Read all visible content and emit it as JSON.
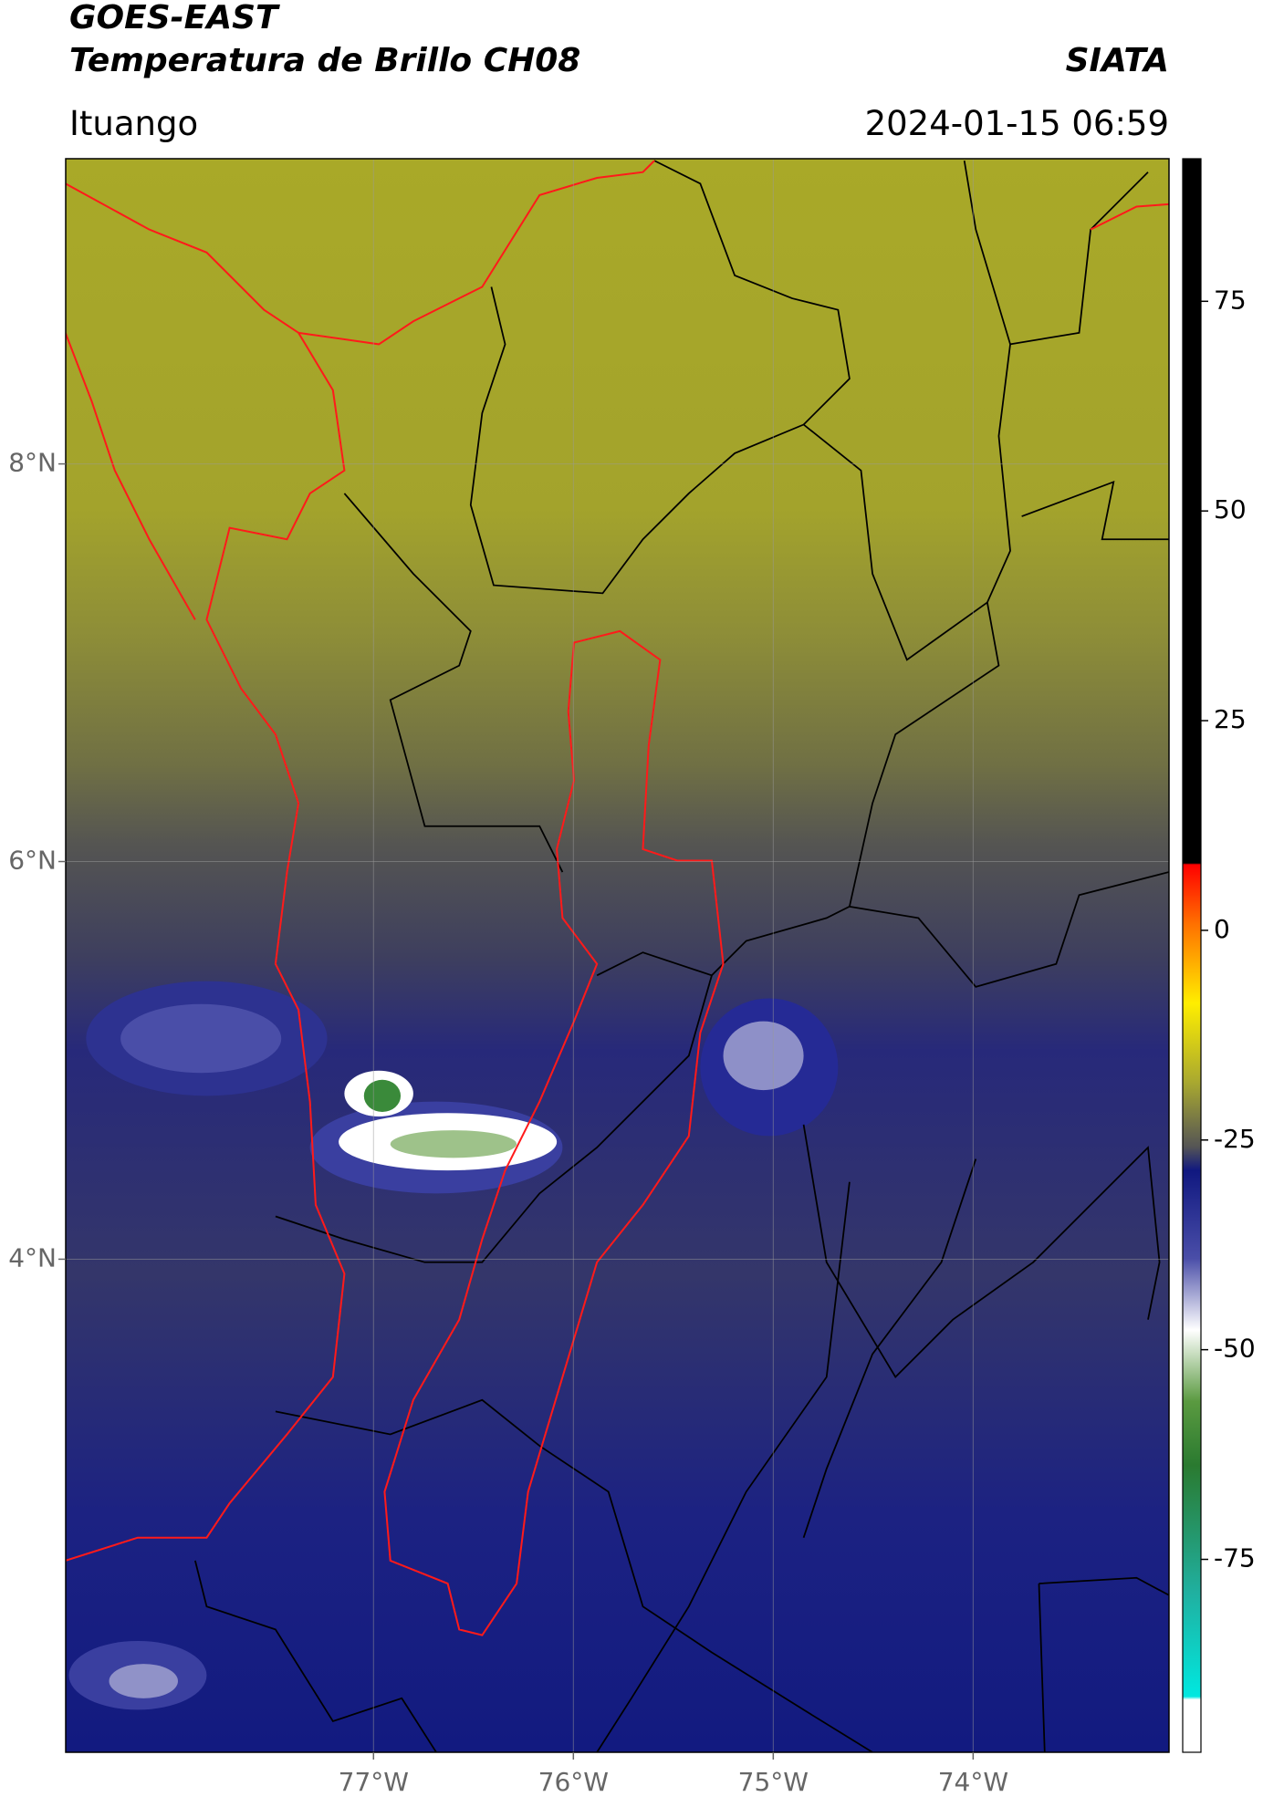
{
  "map": {
    "title": "GOES-EAST",
    "subtitle": "Temperatura de Brillo CH08",
    "source": "SIATA",
    "region": "Ituango",
    "datetime": "2024-01-15 06:59",
    "xlim": [
      -78.54,
      -73.02
    ],
    "ylim": [
      1.52,
      9.535
    ],
    "xticks": [
      {
        "value": -77,
        "label": "77°W"
      },
      {
        "value": -76,
        "label": "76°W"
      },
      {
        "value": -75,
        "label": "75°W"
      },
      {
        "value": -74,
        "label": "74°W"
      }
    ],
    "yticks": [
      {
        "value": 8,
        "label": "8°N"
      },
      {
        "value": 6,
        "label": "6°N"
      },
      {
        "value": 4,
        "label": "4°N"
      }
    ],
    "grid": true,
    "colorbar": {
      "clim": [
        -98,
        92
      ],
      "ticks": [
        75,
        50,
        25,
        0,
        -25,
        -50,
        -75
      ]
    }
  }
}
